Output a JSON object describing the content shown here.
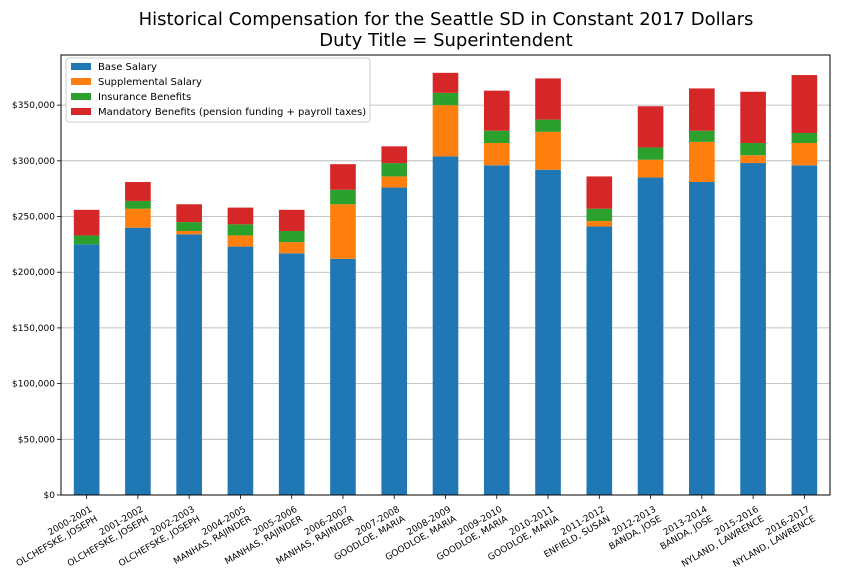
{
  "chart_data": {
    "type": "bar",
    "stacked": true,
    "title": "Historical Compensation for the Seattle SD in Constant 2017 Dollars",
    "subtitle": "Duty Title = Superintendent",
    "xlabel": "",
    "ylabel": "",
    "ylim": [
      0,
      395000
    ],
    "grid": "horizontal",
    "legend_position": "top-left",
    "categories": [
      [
        "2000-2001",
        "OLCHEFSKE, JOSEPH"
      ],
      [
        "2001-2002",
        "OLCHEFSKE, JOSEPH"
      ],
      [
        "2002-2003",
        "OLCHEFSKE, JOSEPH"
      ],
      [
        "2004-2005",
        "MANHAS, RAJINDER"
      ],
      [
        "2005-2006",
        "MANHAS, RAJINDER"
      ],
      [
        "2006-2007",
        "MANHAS, RAJINDER"
      ],
      [
        "2007-2008",
        "GOODLOE, MARIA"
      ],
      [
        "2008-2009",
        "GOODLOE, MARIA"
      ],
      [
        "2009-2010",
        "GOODLOE, MARIA"
      ],
      [
        "2010-2011",
        "GOODLOE, MARIA"
      ],
      [
        "2011-2012",
        "ENFIELD, SUSAN"
      ],
      [
        "2012-2013",
        "BANDA, JOSE"
      ],
      [
        "2013-2014",
        "BANDA, JOSE"
      ],
      [
        "2015-2016",
        "NYLAND, LAWRENCE"
      ],
      [
        "2016-2017",
        "NYLAND, LAWRENCE"
      ]
    ],
    "series": [
      {
        "name": "Base Salary",
        "color": "#1f77b4",
        "values": [
          225000,
          240000,
          234000,
          223000,
          217000,
          212000,
          276000,
          304000,
          296000,
          292000,
          241000,
          285000,
          281000,
          298000,
          296000
        ]
      },
      {
        "name": "Supplemental Salary",
        "color": "#ff7f0e",
        "values": [
          0,
          17000,
          3000,
          10000,
          10000,
          49000,
          10000,
          46000,
          20000,
          34000,
          5000,
          16000,
          36000,
          7000,
          20000
        ]
      },
      {
        "name": "Insurance Benefits",
        "color": "#2ca02c",
        "values": [
          8000,
          7000,
          8000,
          10000,
          10000,
          13000,
          12000,
          11000,
          11000,
          11000,
          11000,
          11000,
          10000,
          11000,
          9000
        ]
      },
      {
        "name": "Mandatory Benefits (pension funding + payroll taxes)",
        "color": "#d62728",
        "values": [
          23000,
          17000,
          16000,
          15000,
          19000,
          23000,
          15000,
          18000,
          36000,
          37000,
          29000,
          37000,
          38000,
          46000,
          52000
        ]
      }
    ],
    "y_ticks": [
      {
        "value": 0,
        "label": "$0"
      },
      {
        "value": 50000,
        "label": "$50,000"
      },
      {
        "value": 100000,
        "label": "$100,000"
      },
      {
        "value": 150000,
        "label": "$150,000"
      },
      {
        "value": 200000,
        "label": "$200,000"
      },
      {
        "value": 250000,
        "label": "$250,000"
      },
      {
        "value": 300000,
        "label": "$300,000"
      },
      {
        "value": 350000,
        "label": "$350,000"
      }
    ]
  }
}
